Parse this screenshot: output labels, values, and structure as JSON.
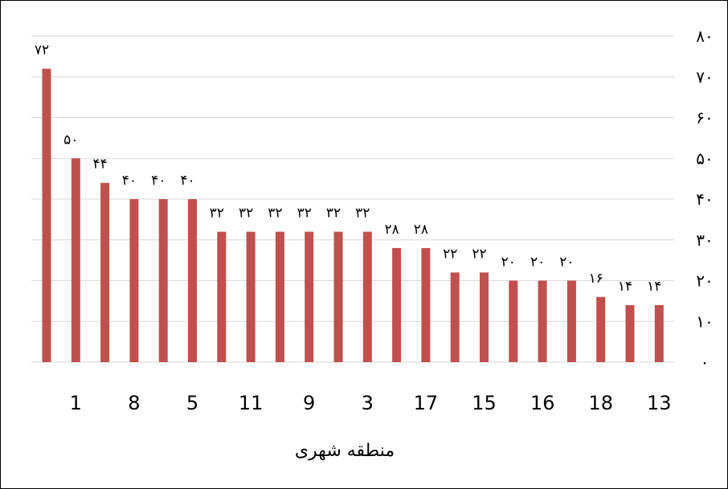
{
  "chart_data": {
    "type": "bar",
    "values": [
      72,
      50,
      44,
      40,
      40,
      40,
      32,
      32,
      32,
      32,
      32,
      32,
      28,
      28,
      22,
      22,
      20,
      20,
      20,
      16,
      14,
      14
    ],
    "data_labels": [
      "۷۲",
      "۵۰",
      "۴۴",
      "۴۰",
      "۴۰",
      "۴۰",
      "۳۲",
      "۳۲",
      "۳۲",
      "۳۲",
      "۳۲",
      "۳۲",
      "۲۸",
      "۲۸",
      "۲۲",
      "۲۲",
      "۲۰",
      "۲۰",
      "۲۰",
      "۱۶",
      "۱۴",
      "۱۴"
    ],
    "x_tick_labels": [
      "1",
      "8",
      "5",
      "11",
      "9",
      "3",
      "17",
      "15",
      "16",
      "18",
      "13"
    ],
    "y_tick_labels": [
      "۰",
      "۱۰",
      "۲۰",
      "۳۰",
      "۴۰",
      "۵۰",
      "۶۰",
      "۷۰",
      "۸۰"
    ],
    "ylim": [
      0,
      80
    ],
    "y_step": 10,
    "xlabel": "منطقه شهری",
    "ylabel": "",
    "title": "",
    "grid": true,
    "y_axis_position": "right",
    "bar_color": "#c0504d",
    "grid_color": "#d9d9d9"
  }
}
